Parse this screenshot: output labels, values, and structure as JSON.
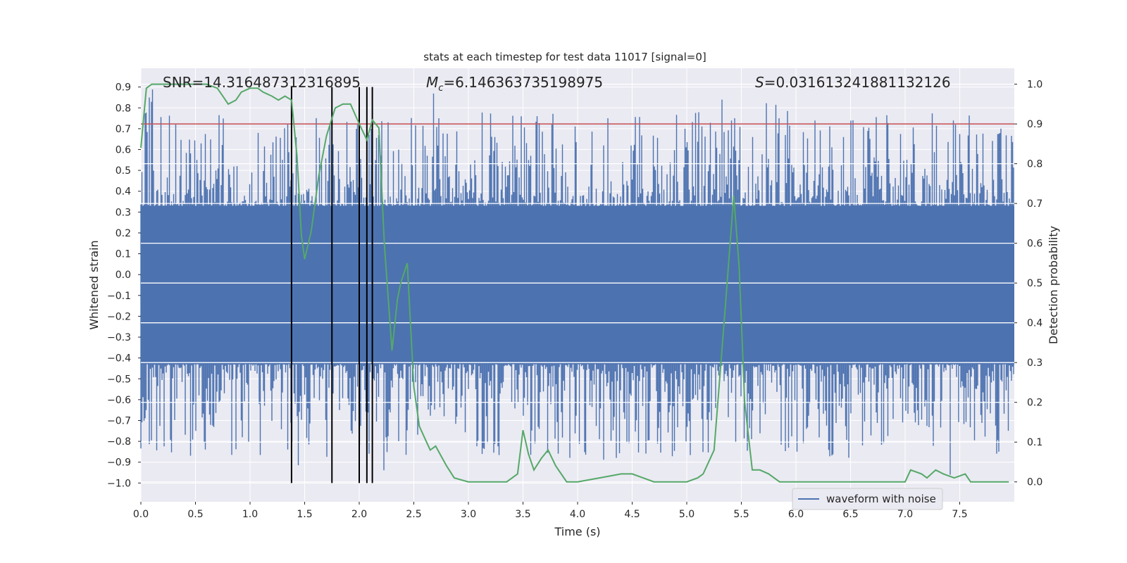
{
  "chart_data": {
    "type": "line",
    "title": "stats at each timestep for test data 11017 [signal=0]",
    "xlabel": "Time (s)",
    "ylabel_left": "Whitened strain",
    "ylabel_right": "Detection probability",
    "xlim": [
      0.0,
      8.0
    ],
    "ylim_left": [
      -1.09,
      0.99
    ],
    "ylim_right": [
      -0.05,
      1.04
    ],
    "x_ticks": [
      "0.0",
      "0.5",
      "1.0",
      "1.5",
      "2.0",
      "2.5",
      "3.0",
      "3.5",
      "4.0",
      "4.5",
      "5.0",
      "5.5",
      "6.0",
      "6.5",
      "7.0",
      "7.5"
    ],
    "y_ticks_left": [
      "0.9",
      "0.8",
      "0.7",
      "0.6",
      "0.5",
      "0.4",
      "0.3",
      "0.2",
      "0.1",
      "0.0",
      "−0.1",
      "−0.2",
      "−0.3",
      "−0.4",
      "−0.5",
      "−0.6",
      "−0.7",
      "−0.8",
      "−0.9",
      "−1.0"
    ],
    "y_ticks_right": [
      "1.0",
      "0.9",
      "0.8",
      "0.7",
      "0.6",
      "0.5",
      "0.4",
      "0.3",
      "0.2",
      "0.1",
      "0.0"
    ],
    "annotations": {
      "snr": "SNR=14.316487312316895",
      "mc_symbol": "M",
      "mc_sub": "c",
      "mc_value": "=6.146363735198975",
      "s_symbol": "S",
      "s_value": "=0.031613241881132126"
    },
    "threshold_probability": 0.9,
    "vertical_markers_s": [
      1.38,
      1.75,
      2.0,
      2.07,
      2.12
    ],
    "series": [
      {
        "name": "waveform with noise",
        "axis": "left",
        "style": "noise",
        "color": "#4c72b0",
        "envelope": {
          "core": 0.33,
          "peak_max": 0.9,
          "peak_min": -1.0
        }
      },
      {
        "name": "detection probability",
        "axis": "right",
        "color": "#55a868",
        "x": [
          0.0,
          0.05,
          0.1,
          0.2,
          0.3,
          0.4,
          0.5,
          0.6,
          0.7,
          0.75,
          0.8,
          0.87,
          0.92,
          1.0,
          1.07,
          1.12,
          1.2,
          1.26,
          1.32,
          1.38,
          1.43,
          1.47,
          1.5,
          1.56,
          1.63,
          1.7,
          1.78,
          1.85,
          1.92,
          2.0,
          2.07,
          2.12,
          2.18,
          2.23,
          2.3,
          2.35,
          2.38,
          2.44,
          2.5,
          2.55,
          2.6,
          2.65,
          2.7,
          2.8,
          2.87,
          3.0,
          3.1,
          3.2,
          3.35,
          3.45,
          3.5,
          3.55,
          3.6,
          3.67,
          3.73,
          3.8,
          3.9,
          4.0,
          4.2,
          4.4,
          4.5,
          4.6,
          4.7,
          4.8,
          4.9,
          5.0,
          5.1,
          5.15,
          5.25,
          5.35,
          5.43,
          5.48,
          5.53,
          5.6,
          5.67,
          5.75,
          5.8,
          5.85,
          6.0,
          6.2,
          6.4,
          6.6,
          6.8,
          7.0,
          7.05,
          7.15,
          7.2,
          7.28,
          7.35,
          7.45,
          7.55,
          7.6,
          7.7,
          7.95
        ],
        "y": [
          0.84,
          0.99,
          1.0,
          1.0,
          1.0,
          1.0,
          1.0,
          1.0,
          0.99,
          0.97,
          0.95,
          0.96,
          0.98,
          0.99,
          0.99,
          0.98,
          0.97,
          0.96,
          0.97,
          0.96,
          0.82,
          0.62,
          0.56,
          0.63,
          0.77,
          0.87,
          0.94,
          0.95,
          0.95,
          0.9,
          0.86,
          0.91,
          0.89,
          0.6,
          0.33,
          0.46,
          0.5,
          0.55,
          0.24,
          0.14,
          0.11,
          0.08,
          0.09,
          0.04,
          0.01,
          0.0,
          0.0,
          0.0,
          0.0,
          0.02,
          0.13,
          0.07,
          0.03,
          0.06,
          0.08,
          0.04,
          0.0,
          0.0,
          0.01,
          0.02,
          0.02,
          0.01,
          0.0,
          0.0,
          0.0,
          0.0,
          0.01,
          0.02,
          0.08,
          0.43,
          0.72,
          0.54,
          0.2,
          0.03,
          0.03,
          0.02,
          0.01,
          0.0,
          0.0,
          0.0,
          0.0,
          0.0,
          0.0,
          0.0,
          0.03,
          0.02,
          0.01,
          0.03,
          0.02,
          0.01,
          0.02,
          0.0,
          0.0,
          0.0
        ]
      }
    ],
    "legend": {
      "position": "bottom-right",
      "entries": [
        "waveform with noise"
      ]
    },
    "grid": true
  }
}
